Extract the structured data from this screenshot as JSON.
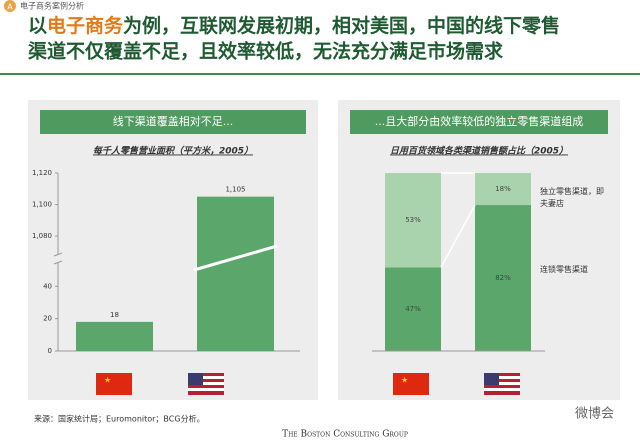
{
  "badge": "A",
  "section": "电子商务案例分析",
  "title": {
    "line1": [
      "以",
      "电子商务",
      "为例，互联网发展初期，相对美国，中国的线下零售"
    ],
    "line2": "渠道不仅覆盖不足，且效率较低，无法充分满足市场需求"
  },
  "source": "来源：国家统计局；Euromonitor；BCG分析。",
  "footer": "The Boston Consulting Group",
  "watermark": "微博会",
  "chart_data": [
    {
      "type": "bar",
      "header": "线下渠道覆盖相对不足...",
      "title": "每千人零售营业面积（平方米，2005）",
      "categories": [
        null,
        null
      ],
      "values": [
        18,
        1105
      ],
      "value_labels": [
        "18",
        "1,105"
      ],
      "color": "#5ba66b",
      "ylim": [
        0,
        55
      ],
      "yticks": [
        0,
        20,
        40
      ],
      "ylim_upper": [
        1068,
        1120
      ],
      "yticks_upper": [
        {
          "value": 1080,
          "label": "1,080"
        },
        {
          "value": 1100,
          "label": "1,100"
        },
        {
          "value": 1120,
          "label": "1,120"
        }
      ]
    },
    {
      "type": "stacked_bar",
      "header": "...且大部分由效率较低的独立零售渠道组成",
      "title": "日用百货领域各类渠道销售额占比（2005）",
      "categories": [
        null,
        null
      ],
      "ylim": [
        0,
        100
      ],
      "series": [
        {
          "name": "连锁零售渠道",
          "color": "#5ba66b",
          "values": [
            47,
            82
          ],
          "value_labels": [
            "47%",
            "82%"
          ]
        },
        {
          "name": "独立零售渠道，即夫妻店",
          "color": "#a9d3ad",
          "values": [
            53,
            18
          ],
          "value_labels": [
            "53%",
            "18%"
          ]
        }
      ]
    }
  ]
}
